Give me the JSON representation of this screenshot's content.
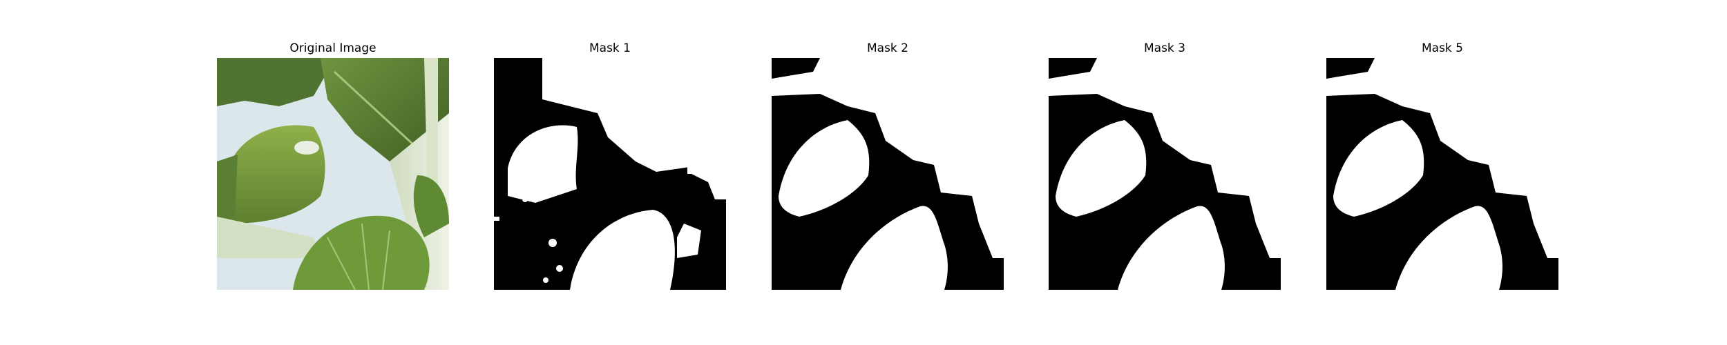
{
  "panels": [
    {
      "title": "Original Image",
      "kind": "photo"
    },
    {
      "title": "Mask 1",
      "kind": "mask-noisy"
    },
    {
      "title": "Mask 2",
      "kind": "mask-clean"
    },
    {
      "title": "Mask 3",
      "kind": "mask-clean"
    },
    {
      "title": "Mask 5",
      "kind": "mask-clean"
    }
  ],
  "colors": {
    "mask_fg": "#ffffff",
    "mask_bg": "#000000",
    "leaf_dark": "#4a6b2e",
    "leaf_light": "#8fb04a",
    "sky": "#dfe9ee",
    "stem": "#e4ecd9"
  }
}
